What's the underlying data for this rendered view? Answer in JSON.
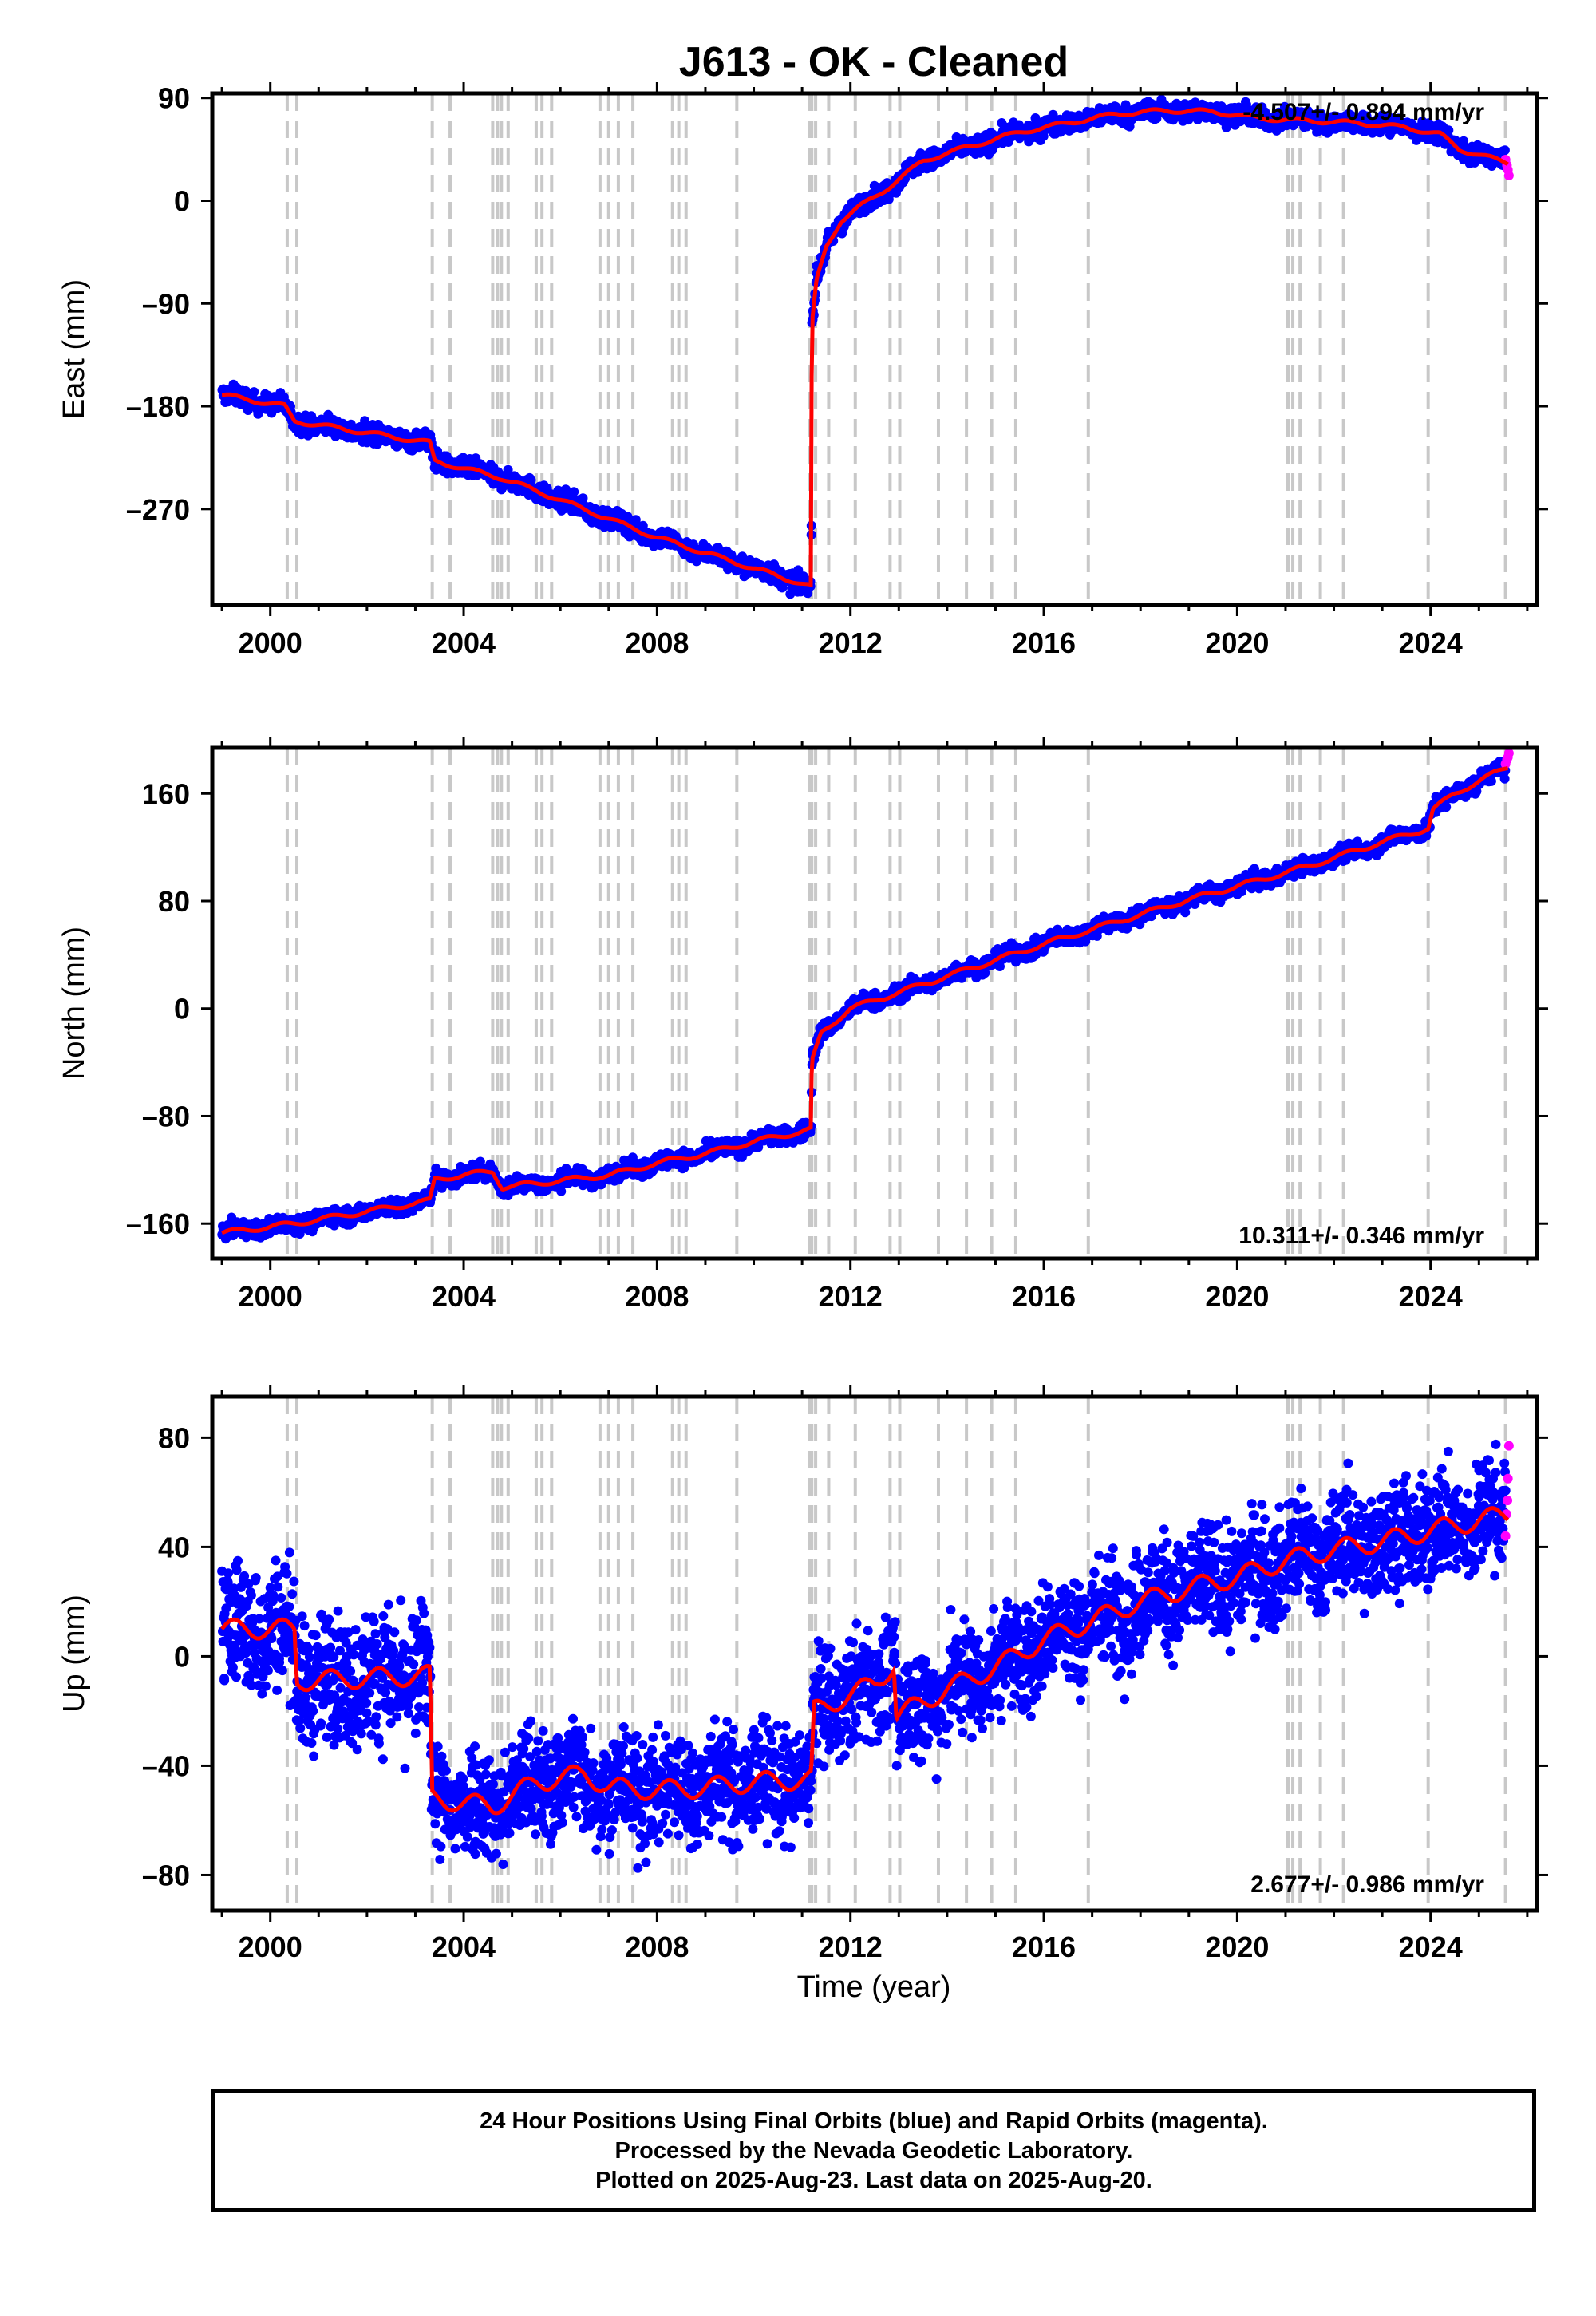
{
  "title": "J613  - OK - Cleaned",
  "xlabel": "Time (year)",
  "caption": [
    "24 Hour Positions Using Final Orbits (blue) and Rapid Orbits (magenta).",
    "Processed by the Nevada Geodetic Laboratory.",
    "Plotted on 2025-Aug-23. Last data on 2025-Aug-20."
  ],
  "colors": {
    "final_orbits": "#0000ff",
    "rapid_orbits": "#ff00ff",
    "model": "#ff0000",
    "event_lines": "#c8c8c8",
    "axes": "#000000"
  },
  "chart_data": [
    {
      "type": "scatter",
      "panel": "east",
      "ylabel": "East (mm)",
      "rate_label": "-4.507+/- 0.894 mm/yr",
      "xlim": [
        1998.8,
        2026.2
      ],
      "ylim": [
        -354,
        94
      ],
      "xticks": [
        2000,
        2004,
        2008,
        2012,
        2016,
        2020,
        2024
      ],
      "yticks": [
        90,
        0,
        -90,
        -180,
        -270
      ],
      "grid": false,
      "scatter_spread_mm": 4,
      "model": [
        [
          1999.0,
          -170
        ],
        [
          2000.3,
          -180
        ],
        [
          2000.5,
          -193
        ],
        [
          2003.3,
          -212
        ],
        [
          2003.4,
          -228
        ],
        [
          2004.8,
          -243
        ],
        [
          2006.0,
          -262
        ],
        [
          2008.0,
          -295
        ],
        [
          2010.0,
          -322
        ],
        [
          2011.19,
          -338
        ],
        [
          2011.2,
          -110
        ],
        [
          2011.3,
          -70
        ],
        [
          2011.5,
          -40
        ],
        [
          2011.8,
          -18
        ],
        [
          2012.2,
          -5
        ],
        [
          2012.8,
          12
        ],
        [
          2013.5,
          35
        ],
        [
          2014.5,
          48
        ],
        [
          2015.5,
          60
        ],
        [
          2016.5,
          68
        ],
        [
          2017.5,
          76
        ],
        [
          2018.5,
          79
        ],
        [
          2019.5,
          78
        ],
        [
          2020.5,
          72
        ],
        [
          2021.5,
          70
        ],
        [
          2022.5,
          68
        ],
        [
          2023.5,
          64
        ],
        [
          2024.2,
          58
        ],
        [
          2024.6,
          45
        ],
        [
          2025.6,
          33
        ]
      ],
      "rapid_orbit_points": [
        [
          2025.55,
          36
        ],
        [
          2025.58,
          31
        ],
        [
          2025.6,
          27
        ],
        [
          2025.62,
          22
        ]
      ]
    },
    {
      "type": "scatter",
      "panel": "north",
      "ylabel": "North (mm)",
      "rate_label": "10.311+/- 0.346 mm/yr",
      "xlim": [
        1998.8,
        2026.2
      ],
      "ylim": [
        -186,
        194
      ],
      "xticks": [
        2000,
        2004,
        2008,
        2012,
        2016,
        2020,
        2024
      ],
      "yticks": [
        160,
        80,
        0,
        -80,
        -160
      ],
      "grid": false,
      "scatter_spread_mm": 3,
      "model": [
        [
          1999.0,
          -167
        ],
        [
          2000.5,
          -160
        ],
        [
          2002.0,
          -151
        ],
        [
          2003.3,
          -143
        ],
        [
          2003.4,
          -127
        ],
        [
          2004.6,
          -121
        ],
        [
          2004.8,
          -133
        ],
        [
          2006.0,
          -128
        ],
        [
          2007.0,
          -124
        ],
        [
          2008.0,
          -115
        ],
        [
          2009.0,
          -108
        ],
        [
          2010.0,
          -99
        ],
        [
          2011.19,
          -90
        ],
        [
          2011.2,
          -40
        ],
        [
          2011.4,
          -18
        ],
        [
          2012.0,
          0
        ],
        [
          2013.0,
          12
        ],
        [
          2014.0,
          24
        ],
        [
          2015.0,
          36
        ],
        [
          2016.0,
          48
        ],
        [
          2017.0,
          59
        ],
        [
          2018.0,
          70
        ],
        [
          2019.0,
          81
        ],
        [
          2020.0,
          91
        ],
        [
          2021.0,
          101
        ],
        [
          2022.0,
          112
        ],
        [
          2023.0,
          124
        ],
        [
          2023.95,
          134
        ],
        [
          2024.05,
          148
        ],
        [
          2024.5,
          160
        ],
        [
          2025.6,
          180
        ]
      ],
      "rapid_orbit_points": [
        [
          2025.55,
          182
        ],
        [
          2025.58,
          185
        ],
        [
          2025.6,
          187
        ],
        [
          2025.62,
          190
        ]
      ]
    },
    {
      "type": "scatter",
      "panel": "up",
      "ylabel": "Up (mm)",
      "rate_label": "2.677+/- 0.986 mm/yr",
      "xlim": [
        1998.8,
        2026.2
      ],
      "ylim": [
        -93,
        95
      ],
      "xticks": [
        2000,
        2004,
        2008,
        2012,
        2016,
        2020,
        2024
      ],
      "yticks": [
        80,
        40,
        0,
        -40,
        -80
      ],
      "grid": false,
      "scatter_spread_mm": 10,
      "model": [
        [
          1999.0,
          10
        ],
        [
          2000.5,
          10
        ],
        [
          2000.55,
          -9
        ],
        [
          2003.3,
          -7
        ],
        [
          2003.35,
          -52
        ],
        [
          2004.6,
          -55
        ],
        [
          2005.5,
          -46
        ],
        [
          2006.5,
          -43
        ],
        [
          2007.0,
          -48
        ],
        [
          2008.0,
          -49
        ],
        [
          2009.0,
          -48
        ],
        [
          2010.0,
          -46
        ],
        [
          2011.19,
          -45
        ],
        [
          2011.25,
          -20
        ],
        [
          2012.5,
          -10
        ],
        [
          2012.9,
          -3
        ],
        [
          2012.95,
          -22
        ],
        [
          2014.0,
          -12
        ],
        [
          2015.0,
          -4
        ],
        [
          2016.0,
          6
        ],
        [
          2017.0,
          13
        ],
        [
          2018.0,
          20
        ],
        [
          2019.0,
          25
        ],
        [
          2020.0,
          29
        ],
        [
          2021.0,
          35
        ],
        [
          2022.0,
          39
        ],
        [
          2023.0,
          42
        ],
        [
          2024.0,
          46
        ],
        [
          2025.6,
          52
        ]
      ],
      "rapid_orbit_points": [
        [
          2025.55,
          44
        ],
        [
          2025.57,
          52
        ],
        [
          2025.59,
          57
        ],
        [
          2025.6,
          65
        ],
        [
          2025.62,
          77
        ]
      ]
    }
  ],
  "event_lines": [
    2000.35,
    2000.55,
    2003.35,
    2003.72,
    2004.6,
    2004.7,
    2004.78,
    2004.92,
    2005.5,
    2005.62,
    2005.82,
    2006.82,
    2007.0,
    2007.2,
    2007.5,
    2008.32,
    2008.45,
    2008.6,
    2009.65,
    2011.15,
    2011.2,
    2011.28,
    2011.55,
    2012.1,
    2012.82,
    2013.02,
    2013.82,
    2014.4,
    2014.92,
    2015.42,
    2016.92,
    2021.05,
    2021.15,
    2021.3,
    2021.72,
    2022.2,
    2023.95,
    2025.55
  ]
}
